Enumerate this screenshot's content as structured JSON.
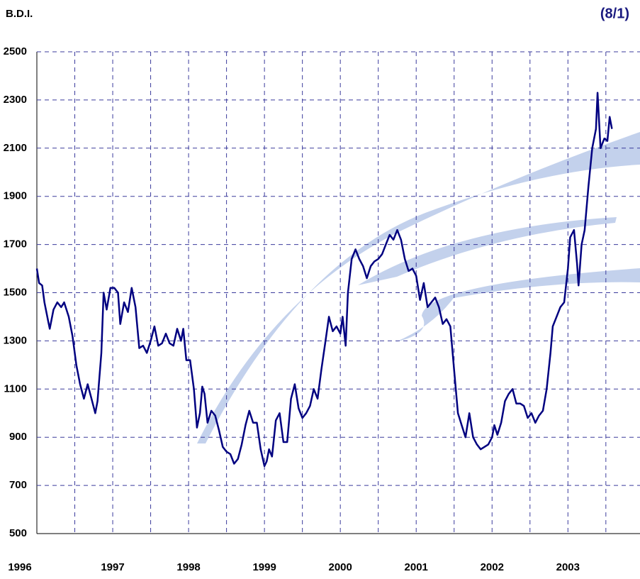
{
  "chart_data": {
    "type": "line",
    "title": "B.D.I.",
    "subtitle": "(8/1)",
    "xlim": [
      1996,
      2003.95
    ],
    "xticks": [
      1996,
      1997,
      1998,
      1999,
      2000,
      2001,
      2002,
      2003
    ],
    "ylim": [
      500,
      2500
    ],
    "yticks": [
      500,
      700,
      900,
      1100,
      1300,
      1500,
      1700,
      1900,
      2100,
      2300,
      2500
    ],
    "grid": true,
    "series": [
      {
        "color": "#000080",
        "x": [
          1996.0,
          1996.03,
          1996.07,
          1996.1,
          1996.15,
          1996.17,
          1996.22,
          1996.27,
          1996.32,
          1996.36,
          1996.42,
          1996.47,
          1996.52,
          1996.57,
          1996.62,
          1996.67,
          1996.72,
          1996.77,
          1996.8,
          1996.85,
          1996.88,
          1996.92,
          1996.97,
          1997.02,
          1997.07,
          1997.1,
          1997.15,
          1997.2,
          1997.25,
          1997.3,
          1997.35,
          1997.4,
          1997.45,
          1997.5,
          1997.55,
          1997.6,
          1997.65,
          1997.7,
          1997.75,
          1997.8,
          1997.85,
          1997.9,
          1997.93,
          1997.97,
          1998.02,
          1998.07,
          1998.11,
          1998.15,
          1998.18,
          1998.21,
          1998.25,
          1998.3,
          1998.35,
          1998.4,
          1998.45,
          1998.5,
          1998.55,
          1998.6,
          1998.65,
          1998.7,
          1998.75,
          1998.8,
          1998.85,
          1998.9,
          1998.95,
          1999.0,
          1999.03,
          1999.06,
          1999.1,
          1999.15,
          1999.2,
          1999.25,
          1999.3,
          1999.35,
          1999.4,
          1999.45,
          1999.5,
          1999.55,
          1999.6,
          1999.65,
          1999.7,
          1999.75,
          1999.8,
          1999.85,
          1999.9,
          1999.95,
          2000.0,
          2000.03,
          2000.07,
          2000.1,
          2000.15,
          2000.2,
          2000.25,
          2000.3,
          2000.35,
          2000.4,
          2000.45,
          2000.5,
          2000.55,
          2000.6,
          2000.65,
          2000.7,
          2000.75,
          2000.8,
          2000.85,
          2000.9,
          2000.95,
          2001.0,
          2001.05,
          2001.1,
          2001.15,
          2001.2,
          2001.25,
          2001.3,
          2001.35,
          2001.4,
          2001.45,
          2001.5,
          2001.55,
          2001.6,
          2001.65,
          2001.7,
          2001.75,
          2001.8,
          2001.85,
          2001.9,
          2001.95,
          2002.0,
          2002.03,
          2002.07,
          2002.12,
          2002.17,
          2002.22,
          2002.27,
          2002.32,
          2002.37,
          2002.42,
          2002.47,
          2002.52,
          2002.57,
          2002.62,
          2002.67,
          2002.72,
          2002.77,
          2002.8,
          2002.85,
          2002.9,
          2002.95,
          2003.0,
          2003.03,
          2003.08,
          2003.12,
          2003.14,
          2003.18,
          2003.22,
          2003.27,
          2003.32,
          2003.37,
          2003.39,
          2003.43,
          2003.48,
          2003.52,
          2003.55,
          2003.58
        ],
        "values": [
          1600,
          1540,
          1530,
          1460,
          1380,
          1350,
          1430,
          1460,
          1440,
          1460,
          1400,
          1320,
          1200,
          1120,
          1060,
          1120,
          1060,
          1000,
          1050,
          1250,
          1500,
          1430,
          1520,
          1520,
          1500,
          1370,
          1460,
          1420,
          1520,
          1440,
          1270,
          1280,
          1250,
          1300,
          1360,
          1280,
          1290,
          1330,
          1290,
          1280,
          1350,
          1300,
          1350,
          1220,
          1220,
          1100,
          940,
          1000,
          1110,
          1080,
          960,
          1010,
          990,
          930,
          860,
          840,
          830,
          790,
          810,
          870,
          950,
          1010,
          960,
          960,
          850,
          780,
          800,
          850,
          820,
          970,
          1000,
          880,
          880,
          1060,
          1120,
          1020,
          980,
          1000,
          1030,
          1100,
          1060,
          1180,
          1290,
          1400,
          1340,
          1360,
          1330,
          1400,
          1280,
          1500,
          1640,
          1680,
          1640,
          1610,
          1560,
          1610,
          1630,
          1640,
          1660,
          1700,
          1740,
          1720,
          1760,
          1720,
          1640,
          1590,
          1600,
          1570,
          1470,
          1540,
          1440,
          1460,
          1480,
          1440,
          1370,
          1390,
          1360,
          1180,
          1000,
          950,
          900,
          1000,
          900,
          870,
          850,
          860,
          870,
          900,
          950,
          910,
          960,
          1050,
          1080,
          1100,
          1040,
          1040,
          1030,
          980,
          1000,
          960,
          990,
          1010,
          1100,
          1250,
          1360,
          1400,
          1440,
          1460,
          1600,
          1730,
          1760,
          1620,
          1530,
          1700,
          1760,
          1940,
          2100,
          2180,
          2330,
          2100,
          2140,
          2130,
          2230,
          2180
        ]
      }
    ]
  }
}
